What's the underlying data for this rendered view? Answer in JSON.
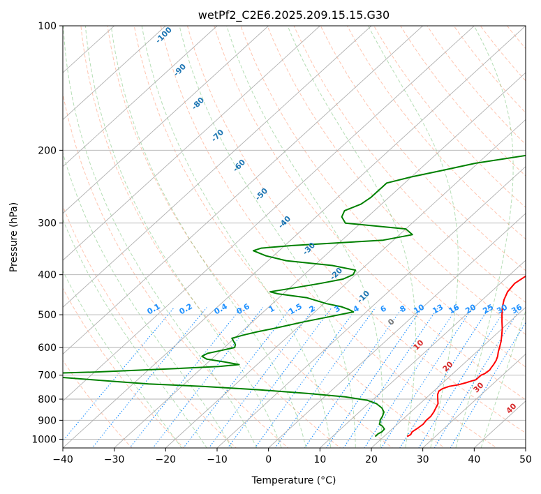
{
  "chart_data": {
    "type": "line",
    "title": "wetPf2_C2E6.2025.209.15.15.G30",
    "xlabel": "Temperature (°C)",
    "ylabel": "Pressure (hPa)",
    "xlim": [
      -40,
      50
    ],
    "ylim": [
      1050,
      100
    ],
    "y_scale": "log",
    "grid": true,
    "x_ticks": [
      -40,
      -30,
      -20,
      -10,
      0,
      10,
      20,
      30,
      40,
      50
    ],
    "y_ticks": [
      100,
      200,
      300,
      400,
      500,
      600,
      700,
      800,
      900,
      1000
    ],
    "series": [
      {
        "color": "#ff0000",
        "pressure": [
          985,
          975,
          960,
          940,
          920,
          900,
          880,
          860,
          840,
          820,
          800,
          780,
          765,
          755,
          745,
          738,
          730,
          725,
          718,
          712,
          706,
          700,
          694,
          688,
          680,
          672,
          660,
          645,
          630,
          615,
          600,
          580,
          560,
          540,
          520,
          500,
          480,
          460,
          440,
          420,
          400,
          380,
          360,
          340,
          320,
          300,
          280,
          260,
          240,
          220,
          200,
          180,
          170,
          160,
          150,
          140,
          130,
          120,
          110,
          100
        ],
        "temperature": [
          24.5,
          24.8,
          24.5,
          24.8,
          25.0,
          24.8,
          24.8,
          24.5,
          24.0,
          23.5,
          22.5,
          21.5,
          21.0,
          21.2,
          22.0,
          23.5,
          24.5,
          25.0,
          25.8,
          25.8,
          25.8,
          25.8,
          26.2,
          26.3,
          26.4,
          26.2,
          26.0,
          25.6,
          25.0,
          24.2,
          23.5,
          22.5,
          21.3,
          20.0,
          18.5,
          17.0,
          15.5,
          14.2,
          13.2,
          12.8,
          13.5,
          14.5,
          15.5,
          16.2,
          16.5,
          17.0,
          17.2,
          18.0,
          18.8,
          19.5,
          20.2,
          21.2,
          22.0,
          22.5,
          23.5,
          24.5,
          26.0,
          27.8,
          30.0,
          33.0
        ]
      },
      {
        "color": "#008000",
        "pressure": [
          985,
          970,
          960,
          945,
          930,
          920,
          910,
          900,
          880,
          860,
          840,
          820,
          805,
          790,
          775,
          760,
          745,
          735,
          725,
          715,
          705,
          695,
          688,
          680,
          674,
          667,
          660,
          650,
          640,
          630,
          620,
          610,
          600,
          590,
          580,
          570,
          560,
          550,
          540,
          520,
          505,
          492,
          485,
          478,
          470,
          455,
          445,
          440,
          435,
          430,
          420,
          410,
          400,
          390,
          380,
          370,
          360,
          350,
          345,
          340,
          330,
          320,
          310,
          300,
          290,
          280,
          270,
          260,
          250,
          245,
          240,
          232,
          224,
          215,
          205,
          195,
          185,
          175,
          165,
          150,
          140,
          130,
          120,
          112,
          108,
          100
        ],
        "temperature": [
          18.3,
          18.3,
          18.6,
          18.5,
          17.5,
          16.5,
          16.2,
          15.8,
          15.4,
          14.8,
          13.5,
          11.5,
          9.0,
          4.0,
          -4.0,
          -14.0,
          -26.0,
          -37.0,
          -44.0,
          -51.0,
          -58.0,
          -62.0,
          -50.0,
          -41.0,
          -34.0,
          -27.0,
          -23.5,
          -27.0,
          -31.0,
          -32.5,
          -32.0,
          -30.0,
          -28.0,
          -28.5,
          -29.5,
          -30.5,
          -29.0,
          -27.0,
          -24.5,
          -20.0,
          -16.0,
          -12.5,
          -14.0,
          -16.0,
          -19.5,
          -24.5,
          -31.0,
          -33.0,
          -31.0,
          -29.0,
          -25.0,
          -21.5,
          -20.5,
          -21.0,
          -26.5,
          -36.5,
          -41.5,
          -45.0,
          -44.0,
          -38.5,
          -22.0,
          -17.5,
          -20.0,
          -33.0,
          -35.0,
          -35.8,
          -34.0,
          -33.5,
          -33.5,
          -33.5,
          -33.5,
          -30.0,
          -25.5,
          -20.5,
          -11.5,
          -6.5,
          -5.0,
          -2.5,
          -0.5,
          0.5,
          1.0,
          1.5,
          0.5,
          -0.5,
          1.0,
          2.5
        ]
      }
    ],
    "mixing_ratio_labels": [
      "0.1",
      "0.2",
      "0.4",
      "0.6",
      "1",
      "1.5",
      "2",
      "3",
      "4",
      "6",
      "8",
      "10",
      "13",
      "16",
      "20",
      "25",
      "30",
      "36"
    ],
    "moist_adiabat_labels": [
      "-100",
      "-90",
      "-80",
      "-70",
      "-60",
      "-50",
      "-40",
      "-30",
      "-20",
      "-10",
      "0",
      "10",
      "20",
      "30",
      "40"
    ]
  }
}
